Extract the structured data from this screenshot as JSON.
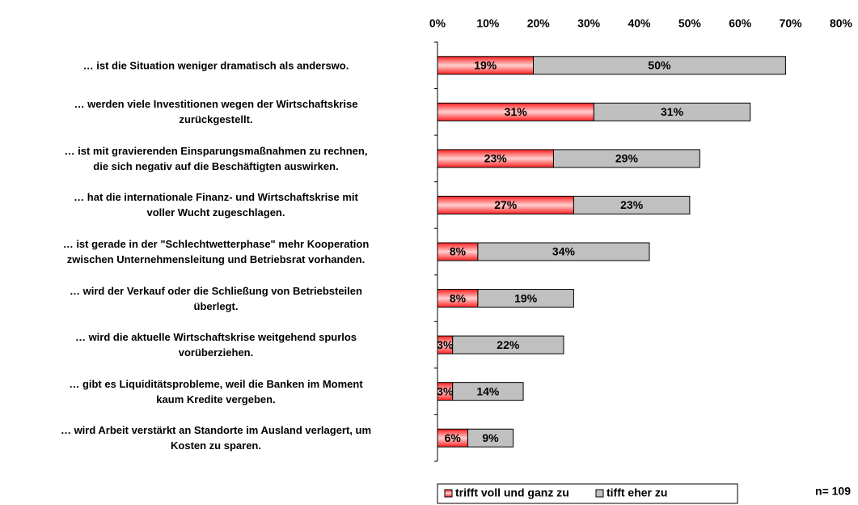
{
  "chart_data": {
    "type": "stacked-bar-horizontal",
    "categories": [
      "… ist die Situation weniger dramatisch als anderswo.",
      "… werden viele Investitionen wegen der Wirtschaftskrise\nzurückgestellt.",
      "… ist mit gravierenden Einsparungsmaßnahmen zu rechnen,\ndie sich negativ auf die Beschäftigten auswirken.",
      "… hat die internationale Finanz- und Wirtschaftskrise mit\nvoller Wucht zugeschlagen.",
      "… ist gerade in der \"Schlechtwetterphase\" mehr Kooperation\nzwischen Unternehmensleitung und Betriebsrat vorhanden.",
      "… wird der Verkauf oder die Schließung von Betriebsteilen\nüberlegt.",
      "… wird die aktuelle Wirtschaftskrise weitgehend spurlos\nvorüberziehen.",
      "… gibt es Liquiditätsprobleme, weil die Banken im Moment\nkaum Kredite vergeben.",
      "… wird Arbeit verstärkt an Standorte im Ausland verlagert, um\nKosten zu sparen."
    ],
    "series": [
      {
        "name": "trifft voll und ganz zu",
        "color": "#ff2020",
        "values": [
          19,
          31,
          23,
          27,
          8,
          8,
          3,
          3,
          6
        ],
        "value_labels": [
          "19%",
          "31%",
          "23%",
          "27%",
          "8%",
          "8%",
          "3%",
          "3%",
          "6%"
        ]
      },
      {
        "name": "tifft eher zu",
        "color": "#c0c0c0",
        "values": [
          50,
          31,
          29,
          23,
          34,
          19,
          22,
          14,
          9
        ],
        "value_labels": [
          "50%",
          "31%",
          "29%",
          "23%",
          "34%",
          "19%",
          "22%",
          "14%",
          "9%"
        ]
      }
    ],
    "xlim": [
      0,
      80
    ],
    "xticks": [
      {
        "value": 0,
        "label": "0%"
      },
      {
        "value": 10,
        "label": "10%"
      },
      {
        "value": 20,
        "label": "20%"
      },
      {
        "value": 30,
        "label": "30%"
      },
      {
        "value": 40,
        "label": "40%"
      },
      {
        "value": 50,
        "label": "50%"
      },
      {
        "value": 60,
        "label": "60%"
      },
      {
        "value": 70,
        "label": "70%"
      },
      {
        "value": 80,
        "label": "80%"
      }
    ],
    "annotation": "n= 109"
  }
}
